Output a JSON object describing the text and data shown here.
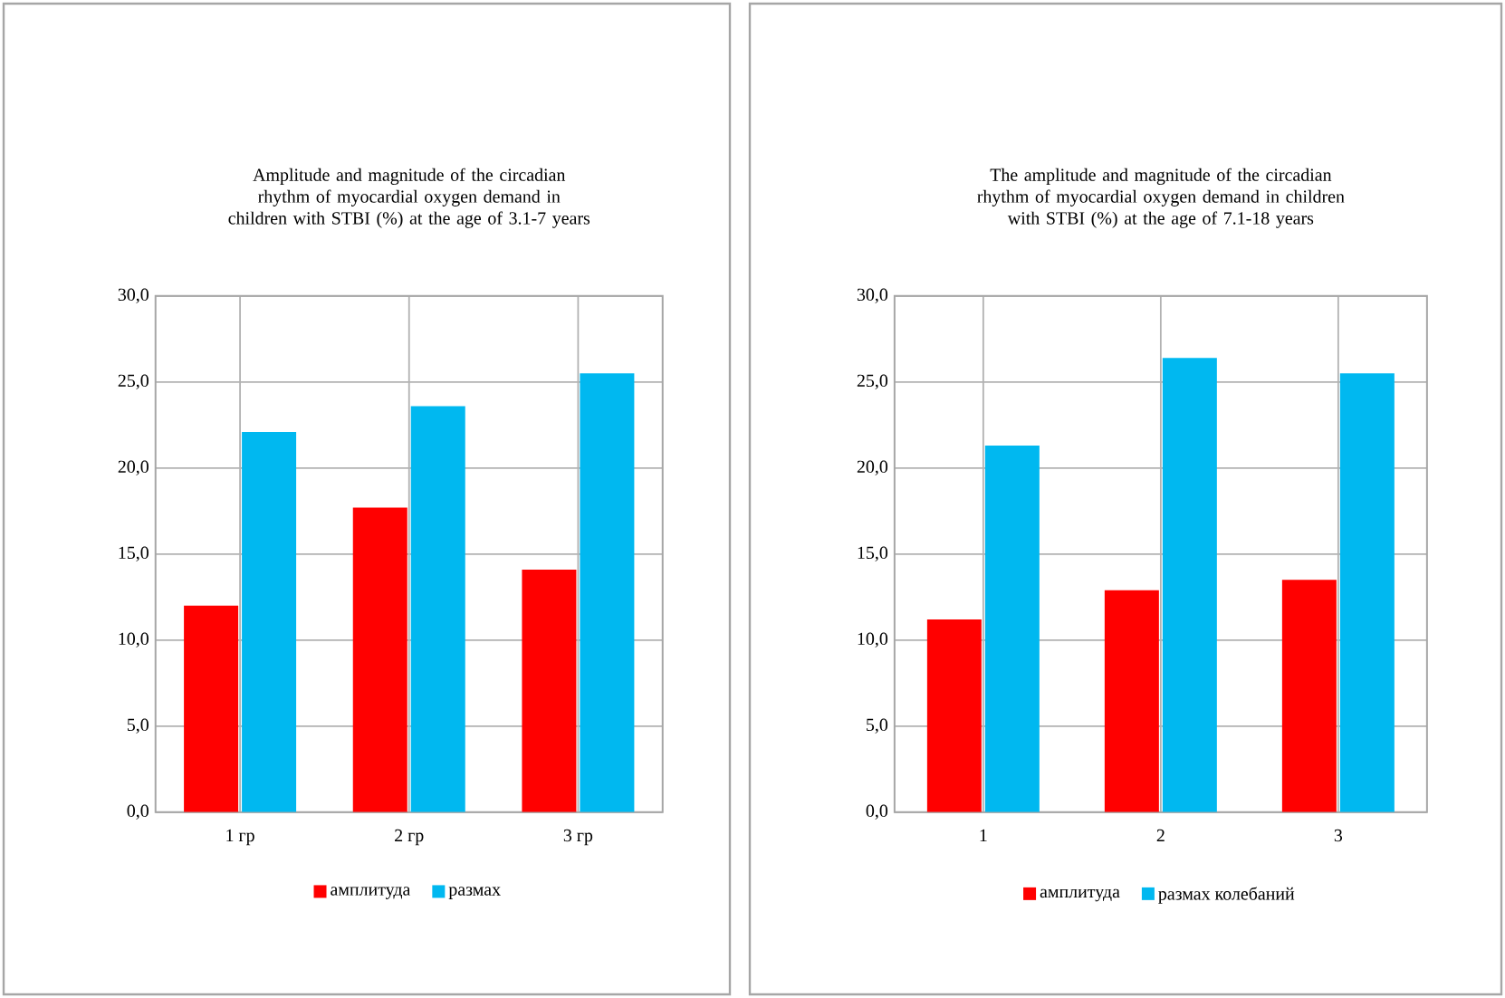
{
  "chart_data": [
    {
      "type": "bar",
      "title": "Amplitude and magnitude of the circadian rhythm of myocardial oxygen demand in children with STBI (%) at the age of 3.1-7 years",
      "categories": [
        "1 гр",
        "2 гр",
        "3 гр"
      ],
      "series": [
        {
          "name": "амплитуда",
          "color": "#ff0000",
          "values": [
            12.0,
            17.7,
            14.1
          ]
        },
        {
          "name": "размах",
          "color": "#00b8f0",
          "values": [
            22.1,
            23.6,
            25.5
          ]
        }
      ],
      "ylim": [
        0,
        30
      ],
      "yticks": [
        {
          "value": 0,
          "label": "0,0"
        },
        {
          "value": 5,
          "label": "5,0"
        },
        {
          "value": 10,
          "label": "10,0"
        },
        {
          "value": 15,
          "label": "15,0"
        },
        {
          "value": 20,
          "label": "20,0"
        },
        {
          "value": 25,
          "label": "25,0"
        },
        {
          "value": 30,
          "label": "30,0"
        }
      ],
      "grid": true,
      "legend": "bottom"
    },
    {
      "type": "bar",
      "title": "The amplitude and magnitude of the circadian rhythm of myocardial oxygen demand in children with STBI (%) at the age of 7.1-18 years",
      "categories": [
        "1",
        "2",
        "3"
      ],
      "series": [
        {
          "name": "амплитуда",
          "color": "#ff0000",
          "values": [
            11.2,
            12.9,
            13.5
          ]
        },
        {
          "name": "размах колебаний",
          "color": "#00b8f0",
          "values": [
            21.3,
            26.4,
            25.5
          ]
        }
      ],
      "ylim": [
        0,
        30
      ],
      "yticks": [
        {
          "value": 0,
          "label": "0,0"
        },
        {
          "value": 5,
          "label": "5,0"
        },
        {
          "value": 10,
          "label": "10,0"
        },
        {
          "value": 15,
          "label": "15,0"
        },
        {
          "value": 20,
          "label": "20,0"
        },
        {
          "value": 25,
          "label": "25,0"
        },
        {
          "value": 30,
          "label": "30,0"
        }
      ],
      "grid": true,
      "legend": "bottom"
    }
  ]
}
